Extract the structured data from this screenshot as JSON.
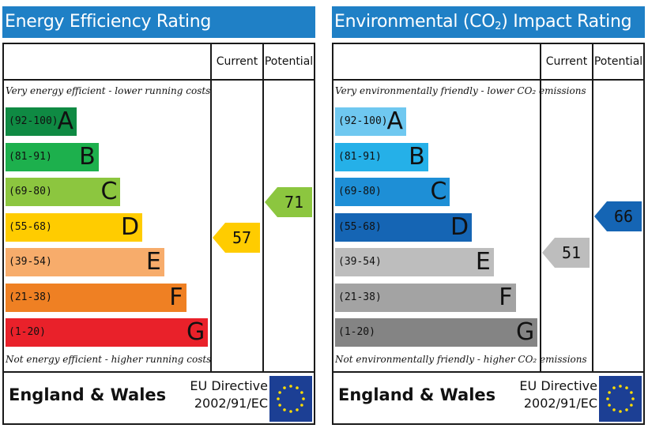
{
  "colors": {
    "title_bar": "#1f80c6",
    "eu_flag": "#1c3f94",
    "eu_stars": "#ffdd00"
  },
  "chart_data": [
    {
      "type": "bar",
      "title": "Energy Efficiency Rating",
      "columns": [
        "Current",
        "Potential"
      ],
      "top_note": "Very energy efficient - lower running costs",
      "bottom_note": "Not energy efficient - higher running costs",
      "bands": [
        {
          "letter": "A",
          "range": "(92-100)",
          "min": 92,
          "max": 100,
          "color": "#0f8a43"
        },
        {
          "letter": "B",
          "range": "(81-91)",
          "min": 81,
          "max": 91,
          "color": "#1db04d"
        },
        {
          "letter": "C",
          "range": "(69-80)",
          "min": 69,
          "max": 80,
          "color": "#8cc63f"
        },
        {
          "letter": "D",
          "range": "(55-68)",
          "min": 55,
          "max": 68,
          "color": "#ffcc00"
        },
        {
          "letter": "E",
          "range": "(39-54)",
          "min": 39,
          "max": 54,
          "color": "#f7ac6b"
        },
        {
          "letter": "F",
          "range": "(21-38)",
          "min": 21,
          "max": 38,
          "color": "#ef8023"
        },
        {
          "letter": "G",
          "range": "(1-20)",
          "min": 1,
          "max": 20,
          "color": "#e9212a"
        }
      ],
      "current": {
        "value": 57,
        "color": "#ffcc00"
      },
      "potential": {
        "value": 71,
        "color": "#8cc63f"
      },
      "region": "England & Wales",
      "directive_line1": "EU Directive",
      "directive_line2": "2002/91/EC"
    },
    {
      "type": "bar",
      "title_prefix": "Environmental (CO",
      "title_sub": "2",
      "title_suffix": ") Impact Rating",
      "columns": [
        "Current",
        "Potential"
      ],
      "top_note": "Very environmentally friendly - lower CO₂ emissions",
      "bottom_note": "Not environmentally friendly - higher CO₂ emissions",
      "bands": [
        {
          "letter": "A",
          "range": "(92-100)",
          "min": 92,
          "max": 100,
          "color": "#6fc8f0"
        },
        {
          "letter": "B",
          "range": "(81-91)",
          "min": 81,
          "max": 91,
          "color": "#25b0e8"
        },
        {
          "letter": "C",
          "range": "(69-80)",
          "min": 69,
          "max": 80,
          "color": "#1e8fd6"
        },
        {
          "letter": "D",
          "range": "(55-68)",
          "min": 55,
          "max": 68,
          "color": "#1565b4"
        },
        {
          "letter": "E",
          "range": "(39-54)",
          "min": 39,
          "max": 54,
          "color": "#bdbdbd"
        },
        {
          "letter": "F",
          "range": "(21-38)",
          "min": 21,
          "max": 38,
          "color": "#a3a3a3"
        },
        {
          "letter": "G",
          "range": "(1-20)",
          "min": 1,
          "max": 20,
          "color": "#848484"
        }
      ],
      "current": {
        "value": 51,
        "color": "#bdbdbd"
      },
      "potential": {
        "value": 66,
        "color": "#1565b4"
      },
      "region": "England & Wales",
      "directive_line1": "EU Directive",
      "directive_line2": "2002/91/EC"
    }
  ]
}
